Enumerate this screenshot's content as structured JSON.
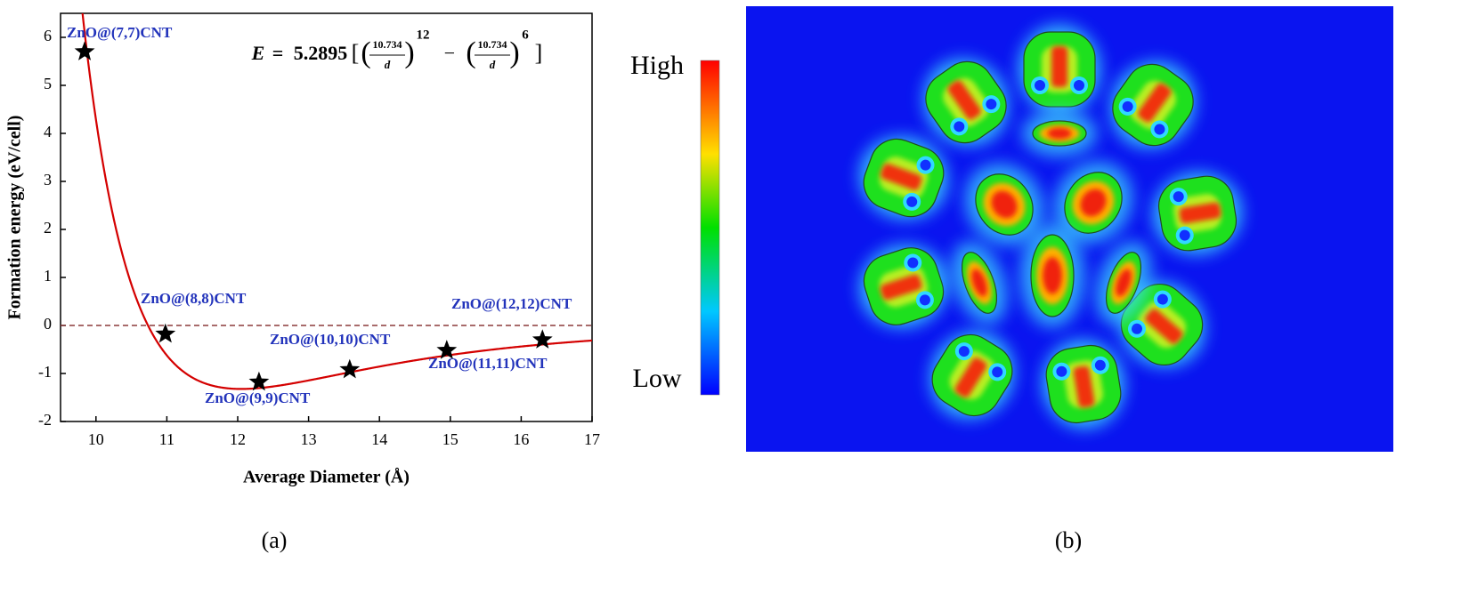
{
  "chart_data": {
    "type": "scatter",
    "xlabel": "Average Diameter (Å)",
    "ylabel": "Formation energy (eV/cell)",
    "x": [
      9.84,
      10.98,
      12.3,
      13.58,
      14.95,
      16.3
    ],
    "values": [
      5.7,
      -0.18,
      -1.18,
      -0.92,
      -0.52,
      -0.3
    ],
    "color": "#000000",
    "annotations": [
      "ZnO@(7,7)CNT",
      "ZnO@(8,8)CNT",
      "ZnO@(9,9)CNT",
      "ZnO@(10,10)CNT",
      "ZnO@(11,11)CNT",
      "ZnO@(12,12)CNT"
    ],
    "annotation_color": "#2233bb",
    "fit": {
      "lhs": "E",
      "equals": "=",
      "coefficient": 5.2895,
      "sigma": 10.734,
      "variable": "d",
      "p": 12,
      "q": 6,
      "minus": "−",
      "brackets": [
        "[",
        "]"
      ],
      "parens": [
        "(",
        ")"
      ],
      "color": "#d40000"
    },
    "reference_line": 0,
    "reference_color": "#8b3a3a",
    "xlim": [
      9.5,
      17
    ],
    "xticks": [
      10,
      11,
      12,
      13,
      14,
      15,
      16,
      17
    ],
    "ylim": [
      -2,
      6.5
    ],
    "yticks": [
      -2,
      -1,
      0,
      1,
      2,
      3,
      4,
      5,
      6
    ]
  },
  "panel_b": {
    "colorbar_high": "High",
    "colorbar_low": "Low"
  },
  "captions": [
    "(a)",
    "(b)"
  ]
}
